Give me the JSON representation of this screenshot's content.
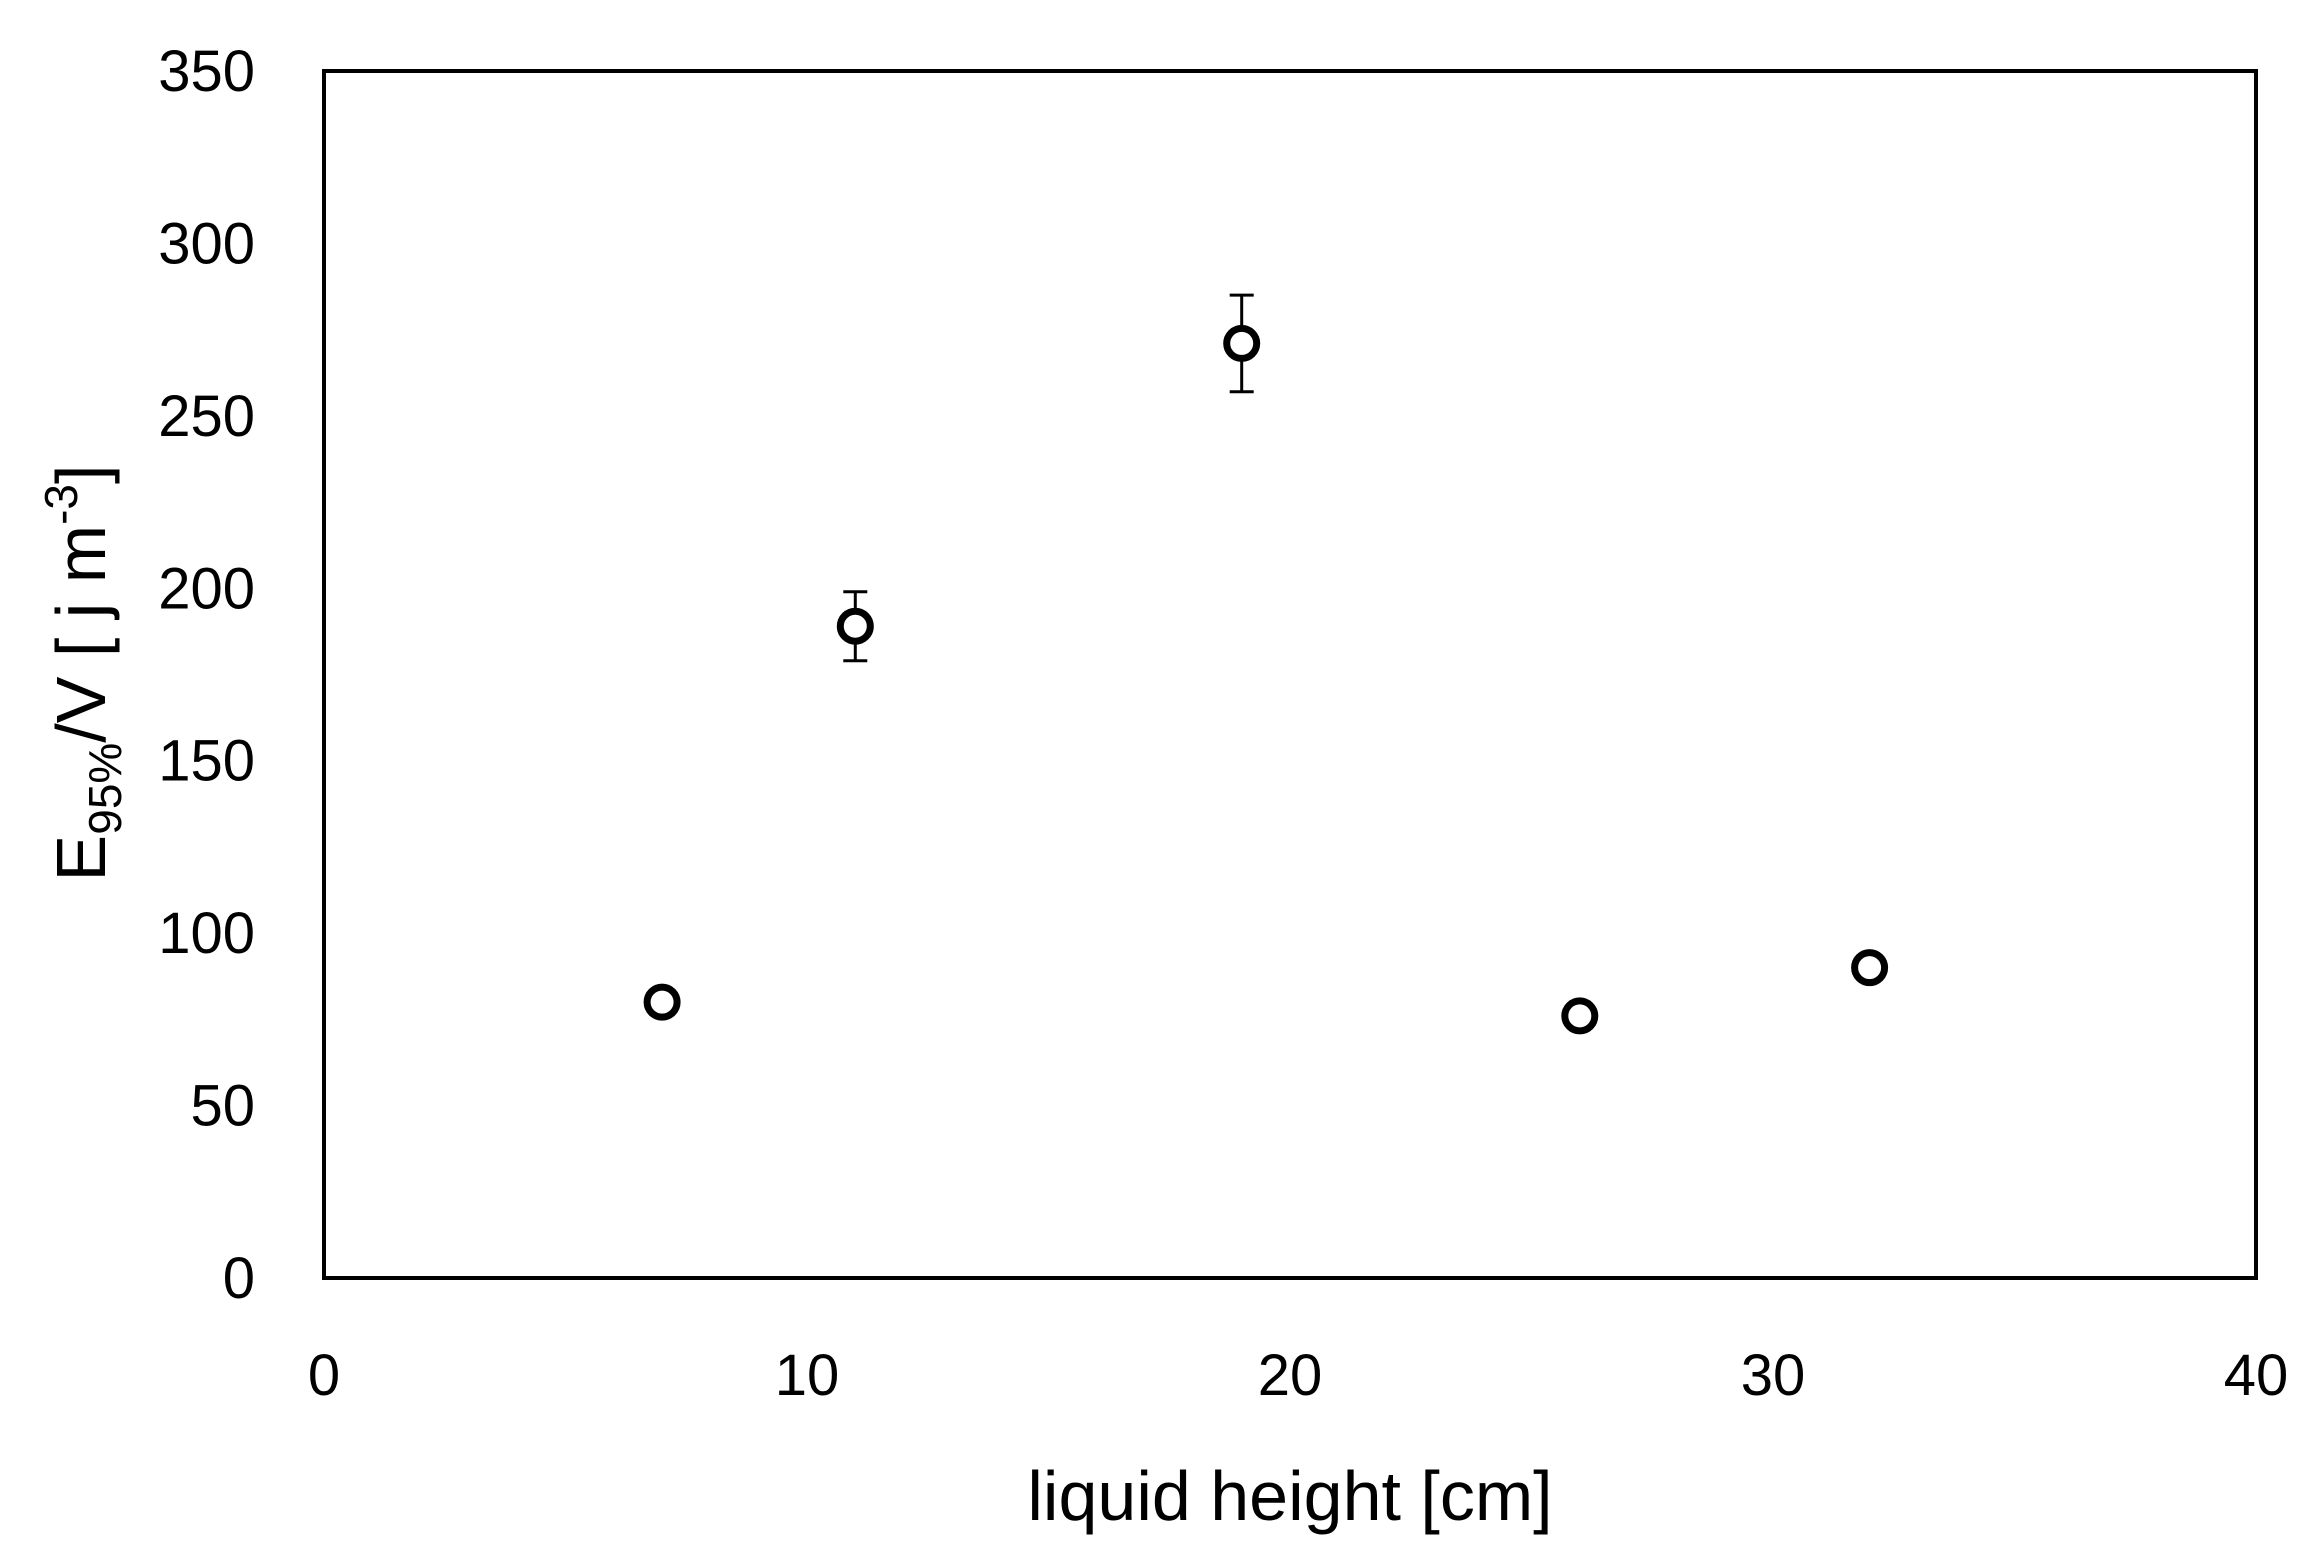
{
  "chart_data": {
    "type": "scatter",
    "title": "",
    "xlabel": "liquid height [cm]",
    "ylabel": {
      "base": "E",
      "subscript": "95%",
      "middle": "/V [ j m",
      "superscript": "-3",
      "end": "]"
    },
    "xlim": [
      0,
      40
    ],
    "ylim": [
      0,
      350
    ],
    "xticks": [
      0,
      10,
      20,
      30,
      40
    ],
    "yticks": [
      0,
      50,
      100,
      150,
      200,
      250,
      300,
      350
    ],
    "grid": false,
    "legend": "none",
    "marker": "open-circle",
    "color": "#000000",
    "points": [
      {
        "x": 7,
        "y": 80,
        "err": 2
      },
      {
        "x": 11,
        "y": 189,
        "err": 10
      },
      {
        "x": 19,
        "y": 271,
        "err": 14
      },
      {
        "x": 26,
        "y": 76,
        "err": 2
      },
      {
        "x": 32,
        "y": 90,
        "err": 2
      }
    ]
  }
}
